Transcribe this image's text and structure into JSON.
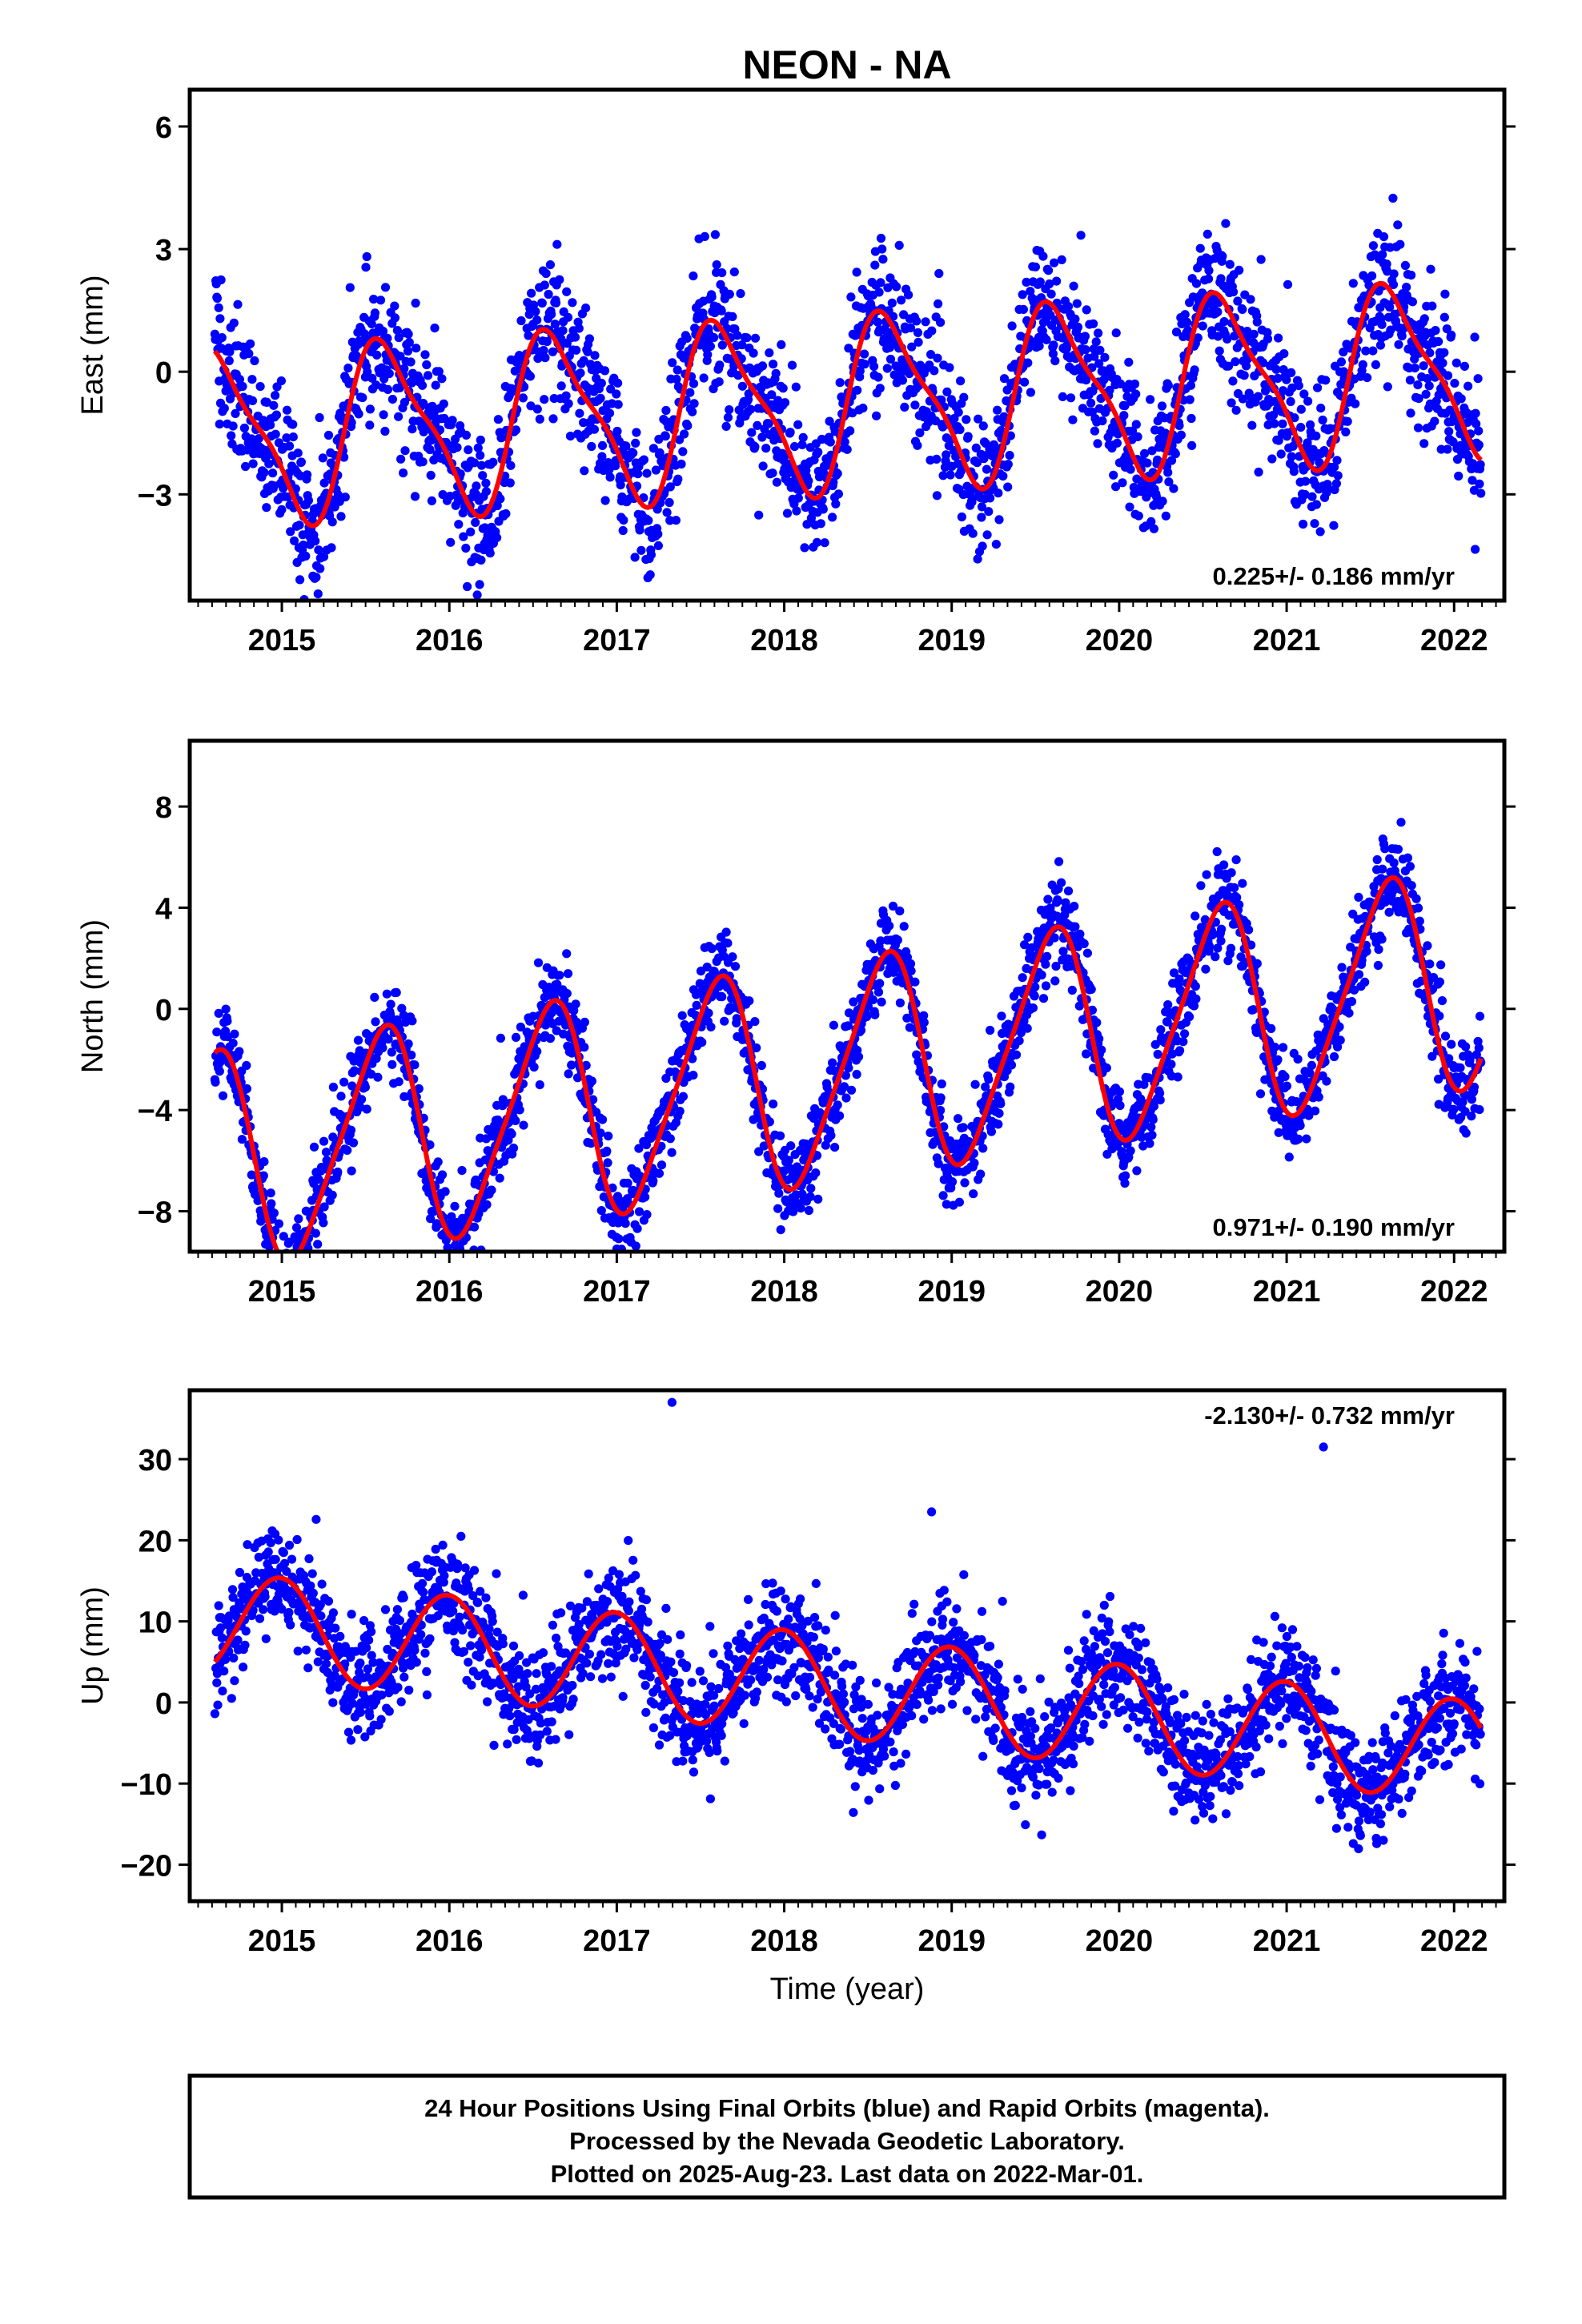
{
  "figure": {
    "title": "NEON - NA",
    "footer_lines": [
      "24 Hour Positions Using Final Orbits (blue) and Rapid Orbits (magenta).",
      "Processed by the Nevada Geodetic Laboratory.",
      "Plotted on 2025-Aug-23. Last data on 2022-Mar-01."
    ]
  },
  "colors": {
    "data_points": "#0000ff",
    "model_fit": "#ff0000",
    "frame": "#000000"
  },
  "chart_data": [
    {
      "type": "scatter",
      "ylabel": "East (mm)",
      "xlabel": "",
      "rate_label": "0.225+/- 0.186 mm/yr",
      "rate_position": "bottom-right",
      "xlim": [
        2014.45,
        2022.3
      ],
      "ylim": [
        -5.6,
        6.9
      ],
      "yticks": [
        -3,
        0,
        3,
        6
      ],
      "xticks": [
        2015,
        2016,
        2017,
        2018,
        2019,
        2020,
        2021,
        2022
      ],
      "grid": false,
      "data_range": [
        2014.6,
        2022.16
      ],
      "series": [
        {
          "kind": "daily positions (points)",
          "model": {
            "offset": -0.75,
            "trend_mm_per_yr": 0.225,
            "annual_cos": -1.4,
            "annual_sin": -1.45,
            "semiannual_cos": 0.55,
            "semiannual_sin": -0.05
          },
          "scatter_mm": 0.85,
          "estimated_points": 2650
        },
        {
          "kind": "model fit (line)",
          "model": {
            "offset": -0.75,
            "trend_mm_per_yr": 0.225,
            "annual_cos": -1.4,
            "annual_sin": -1.45,
            "semiannual_cos": 0.55,
            "semiannual_sin": -0.05
          }
        }
      ]
    },
    {
      "type": "scatter",
      "ylabel": "North (mm)",
      "xlabel": "",
      "rate_label": "0.971+/- 0.190 mm/yr",
      "rate_position": "bottom-right",
      "xlim": [
        2014.45,
        2022.3
      ],
      "ylim": [
        -9.6,
        10.6
      ],
      "yticks": [
        -8,
        -4,
        0,
        4,
        8
      ],
      "xticks": [
        2015,
        2016,
        2017,
        2018,
        2019,
        2020,
        2021,
        2022
      ],
      "grid": false,
      "data_range": [
        2014.6,
        2022.16
      ],
      "series": [
        {
          "kind": "daily positions (points)",
          "model": {
            "offset": -2.4,
            "trend_mm_per_yr": 0.971,
            "annual_cos": -3.6,
            "annual_sin": -2.2,
            "semiannual_cos": -0.6,
            "semiannual_sin": 0.35
          },
          "scatter_mm": 0.9,
          "estimated_points": 2650
        },
        {
          "kind": "model fit (line)",
          "model": {
            "offset": -2.4,
            "trend_mm_per_yr": 0.971,
            "annual_cos": -3.6,
            "annual_sin": -2.2,
            "semiannual_cos": -0.6,
            "semiannual_sin": 0.35
          }
        }
      ]
    },
    {
      "type": "scatter",
      "ylabel": "Up (mm)",
      "xlabel": "Time (year)",
      "rate_label": "-2.130+/- 0.732 mm/yr",
      "rate_position": "top-right",
      "xlim": [
        2014.45,
        2022.3
      ],
      "ylim": [
        -24.5,
        38.5
      ],
      "yticks": [
        -20,
        -10,
        0,
        10,
        20,
        30
      ],
      "xticks": [
        2015,
        2016,
        2017,
        2018,
        2019,
        2020,
        2021,
        2022
      ],
      "grid": false,
      "data_range": [
        2014.6,
        2022.16
      ],
      "series": [
        {
          "kind": "daily positions (points)",
          "model": {
            "offset": 1.8,
            "trend_mm_per_yr": -2.13,
            "annual_cos": 6.3,
            "annual_sin": -0.35,
            "semiannual_cos": 0,
            "semiannual_sin": 0
          },
          "scatter_mm": 3.5,
          "estimated_points": 2650,
          "outliers": [
            [
              2017.33,
              37
            ],
            [
              2018.88,
              23.5
            ],
            [
              2021.22,
              31.5
            ]
          ]
        },
        {
          "kind": "model fit (line)",
          "model": {
            "offset": 1.8,
            "trend_mm_per_yr": -2.13,
            "annual_cos": 6.3,
            "annual_sin": -0.35,
            "semiannual_cos": 0,
            "semiannual_sin": 0
          }
        }
      ]
    }
  ]
}
